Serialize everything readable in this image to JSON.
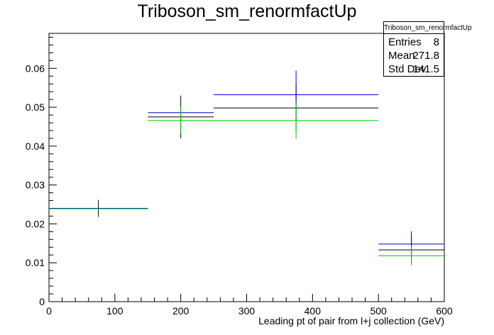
{
  "title": "Triboson_sm_renormfactUp",
  "stats": {
    "name": "Triboson_sm_renormfactUp",
    "rows": [
      {
        "label": "Entries",
        "value": "8"
      },
      {
        "label": "Mean",
        "value": "271.8"
      },
      {
        "label": "Std Dev",
        "value": "141.5"
      }
    ]
  },
  "chart_data": {
    "type": "scatter",
    "title": "Triboson_sm_renormfactUp",
    "xlabel": "Leading pt of pair from l+j collection (GeV)",
    "ylabel": "",
    "xlim": [
      0,
      600
    ],
    "ylim": [
      0,
      0.069
    ],
    "x_ticks": [
      0,
      100,
      200,
      300,
      400,
      500,
      600
    ],
    "y_ticks": [
      0,
      0.01,
      0.02,
      0.03,
      0.04,
      0.05,
      0.06
    ],
    "x_tick_labels": [
      "0",
      "100",
      "200",
      "300",
      "400",
      "500",
      "600"
    ],
    "y_tick_labels": [
      "0",
      "0.01",
      "0.02",
      "0.03",
      "0.04",
      "0.05",
      "0.06"
    ],
    "bins": [
      [
        0,
        150
      ],
      [
        150,
        250
      ],
      [
        250,
        500
      ],
      [
        500,
        600
      ]
    ],
    "series": [
      {
        "color": "#000000",
        "values": [
          0.024,
          0.0475,
          0.0498,
          0.0133
        ],
        "errors": [
          0.0022,
          0.0055,
          0.0058,
          0.0037
        ]
      },
      {
        "color": "#0000cc",
        "values": [
          0.024,
          0.0486,
          0.0532,
          0.0148
        ],
        "errors": [
          0,
          0,
          0.0062,
          0.0033
        ]
      },
      {
        "color": "#00cc00",
        "values": [
          0.0239,
          0.0466,
          0.0466,
          0.0118
        ],
        "errors": [
          0,
          0.0036,
          0.0048,
          0.0024
        ]
      }
    ]
  }
}
